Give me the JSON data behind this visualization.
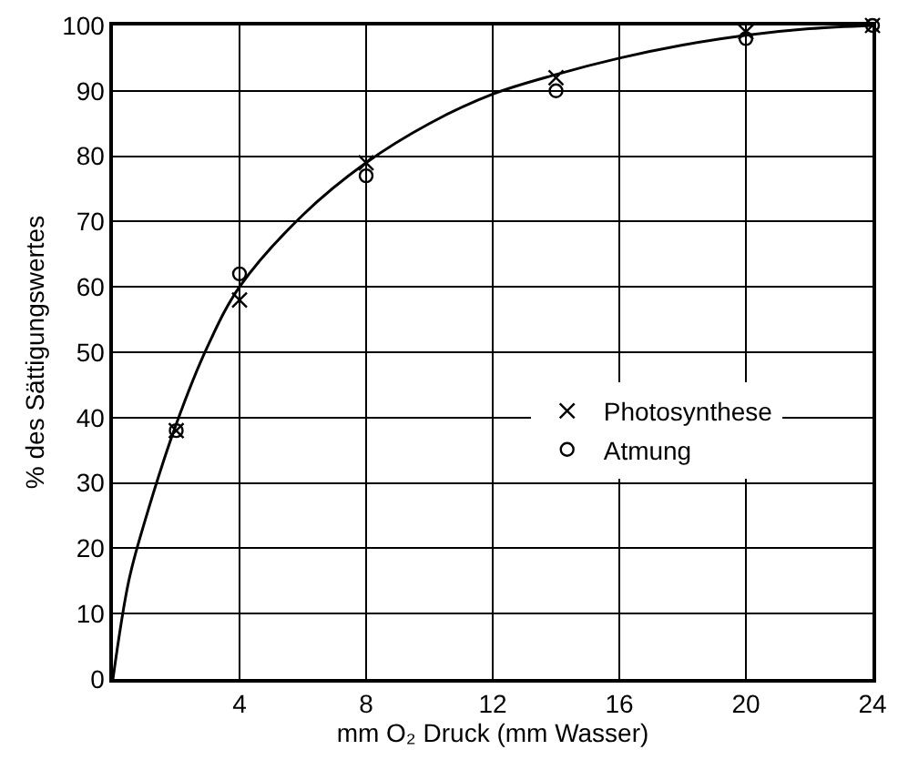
{
  "chart_data": {
    "type": "scatter",
    "xlabel": "mm O₂ Druck (mm Wasser)",
    "ylabel": "% des Sättigungswertes",
    "xlim": [
      0,
      24
    ],
    "xticks": [
      4,
      8,
      12,
      16,
      20,
      24
    ],
    "ylim": [
      0,
      100
    ],
    "yticks": [
      0,
      10,
      20,
      30,
      40,
      50,
      60,
      70,
      80,
      90,
      100
    ],
    "grid": true,
    "legend": "right",
    "series": [
      {
        "type": "line",
        "color": "#000000",
        "marker": "none",
        "x": [
          0,
          0.5,
          1,
          2,
          3,
          4,
          6,
          8,
          10,
          12,
          14,
          16,
          18,
          20,
          22,
          24
        ],
        "values": [
          0,
          15,
          24,
          39,
          51,
          60,
          71,
          79,
          85,
          89.5,
          92.5,
          95,
          97,
          98.5,
          99.5,
          100
        ]
      },
      {
        "name": "Photosynthese",
        "color": "#000000",
        "marker": "cross",
        "x": [
          2,
          4,
          8,
          14,
          20,
          24
        ],
        "values": [
          38,
          58,
          79,
          92,
          99,
          100
        ]
      },
      {
        "name": "Atmung",
        "color": "#000000",
        "marker": "circle",
        "x": [
          2,
          4,
          8,
          14,
          20,
          24
        ],
        "values": [
          38,
          62,
          77,
          90,
          98,
          100
        ]
      }
    ]
  }
}
